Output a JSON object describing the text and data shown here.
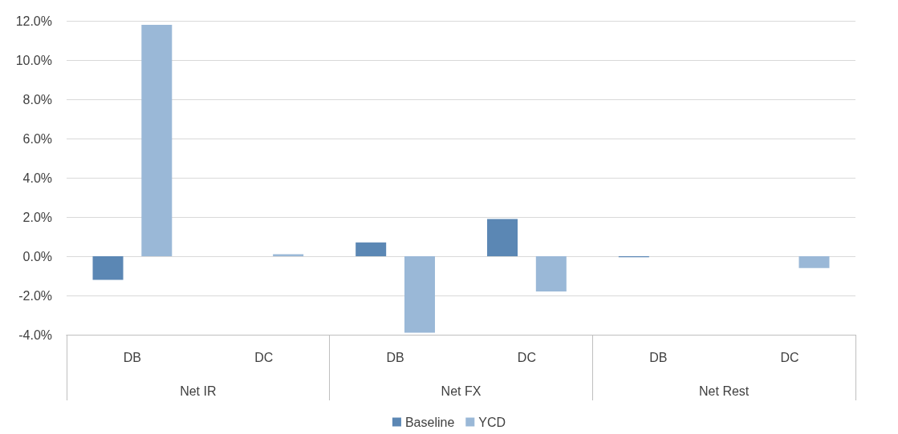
{
  "chart_data": {
    "type": "bar",
    "categories": [
      "DB",
      "DC",
      "DB",
      "DC",
      "DB",
      "DC"
    ],
    "annotations": [
      "Net IR",
      "Net FX",
      "Net Rest"
    ],
    "series": [
      {
        "name": "Baseline",
        "color": "#5b87b4",
        "values": [
          -1.2,
          0,
          0.7,
          1.9,
          -0.05,
          0
        ]
      },
      {
        "name": "YCD",
        "color": "#9ab8d7",
        "values": [
          11.8,
          0.1,
          -3.9,
          -1.8,
          0,
          -0.6
        ]
      }
    ],
    "ylim": [
      -4,
      12
    ],
    "yticks": [
      {
        "value": -4,
        "label": "-4.0%"
      },
      {
        "value": -2,
        "label": "-2.0%"
      },
      {
        "value": 0,
        "label": "0.0%"
      },
      {
        "value": 2,
        "label": "2.0%"
      },
      {
        "value": 4,
        "label": "4.0%"
      },
      {
        "value": 6,
        "label": "6.0%"
      },
      {
        "value": 8,
        "label": "8.0%"
      },
      {
        "value": 10,
        "label": "10.0%"
      },
      {
        "value": 12,
        "label": "12.0%"
      }
    ],
    "grid": "y",
    "legend": "bottom"
  }
}
